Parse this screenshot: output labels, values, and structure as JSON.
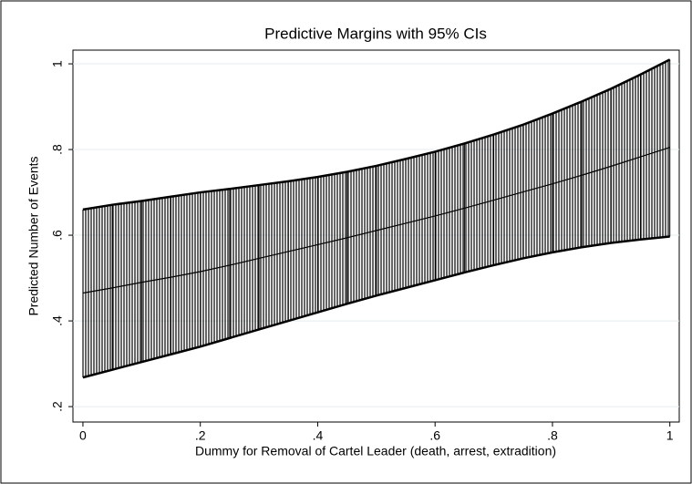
{
  "chart_data": {
    "type": "line-ci",
    "title": "Predictive Margins with 95% CIs",
    "xlabel": "Dummy for Removal of Cartel Leader (death, arrest, extradition)",
    "ylabel": "Predicted Number of Events",
    "x": [
      0,
      0.05,
      0.1,
      0.15,
      0.2,
      0.25,
      0.3,
      0.35,
      0.4,
      0.45,
      0.5,
      0.55,
      0.6,
      0.65,
      0.7,
      0.75,
      0.8,
      0.85,
      0.9,
      0.95,
      1
    ],
    "values": [
      0.465,
      0.477,
      0.49,
      0.502,
      0.515,
      0.53,
      0.546,
      0.562,
      0.578,
      0.594,
      0.611,
      0.628,
      0.645,
      0.663,
      0.682,
      0.701,
      0.72,
      0.74,
      0.761,
      0.783,
      0.805
    ],
    "upper": [
      0.66,
      0.671,
      0.68,
      0.69,
      0.7,
      0.708,
      0.717,
      0.726,
      0.736,
      0.748,
      0.762,
      0.778,
      0.795,
      0.814,
      0.835,
      0.858,
      0.884,
      0.912,
      0.942,
      0.975,
      1.01
    ],
    "lower": [
      0.268,
      0.286,
      0.304,
      0.322,
      0.34,
      0.36,
      0.38,
      0.4,
      0.42,
      0.44,
      0.459,
      0.477,
      0.495,
      0.513,
      0.53,
      0.546,
      0.56,
      0.572,
      0.582,
      0.59,
      0.597
    ],
    "color": "#000000",
    "xlim": [
      -0.017,
      1.016
    ],
    "ylim": [
      0.164,
      1.032
    ],
    "xticks": [
      0,
      {
        "value": 0.2,
        "label": ".2"
      },
      {
        "value": 0.4,
        "label": ".4"
      },
      {
        "value": 0.6,
        "label": ".6"
      },
      {
        "value": 0.8,
        "label": ".8"
      },
      1
    ],
    "yticks": [
      {
        "value": 0.2,
        "label": ".2"
      },
      {
        "value": 0.4,
        "label": ".4"
      },
      {
        "value": 0.6,
        "label": ".6"
      },
      {
        "value": 0.8,
        "label": ".8"
      },
      1
    ],
    "grid": true
  }
}
